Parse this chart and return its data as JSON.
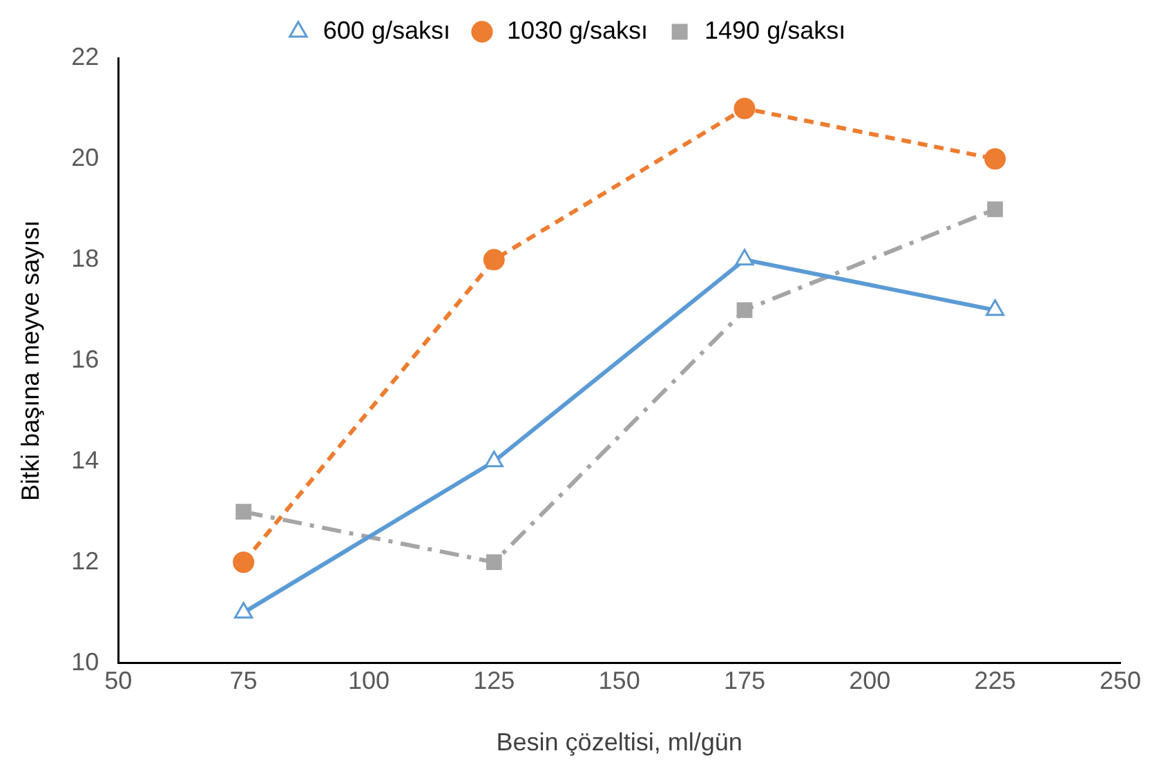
{
  "chart_data": {
    "type": "line",
    "xlabel": "Besin çözeltisi, ml/gün",
    "ylabel": "Bitki başına meyve sayısı",
    "x": [
      75,
      125,
      175,
      225
    ],
    "series": [
      {
        "name": "600 g/saksı",
        "color": "#5b9bd5",
        "values": [
          11,
          14,
          18,
          17
        ],
        "marker": "triangle",
        "line_style": "solid"
      },
      {
        "name": "1030 g/saksı",
        "color": "#ed7d31",
        "values": [
          12,
          18,
          21,
          20
        ],
        "marker": "circle",
        "line_style": "dashed"
      },
      {
        "name": "1490 g/saksı",
        "color": "#a5a5a5",
        "values": [
          13,
          12,
          17,
          19
        ],
        "marker": "square",
        "line_style": "dashdot"
      }
    ],
    "xlim": [
      50,
      250
    ],
    "xticks": [
      50,
      75,
      100,
      125,
      150,
      175,
      200,
      225,
      250
    ],
    "ylim": [
      10,
      22
    ],
    "yticks": [
      10,
      12,
      14,
      16,
      18,
      20,
      22
    ],
    "grid": false,
    "legend": "top"
  }
}
